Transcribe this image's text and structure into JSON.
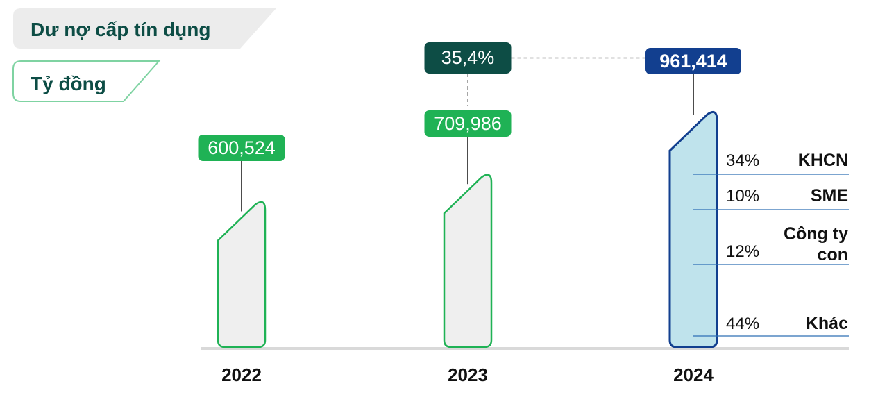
{
  "header": {
    "title": "Dư nợ cấp tín dụng",
    "unit": "Tỷ đồng"
  },
  "colors": {
    "accent_green": "#1fb255",
    "dark_teal": "#0d4d45",
    "navy": "#123f8f",
    "bar_fill": "#efefef",
    "bar_fill_current": "#bfe3ec",
    "segment_line": "#2e6fb5",
    "baseline": "#d9d9d9",
    "title_bg": "#ececec"
  },
  "chart_data": {
    "type": "bar",
    "title": "Dư nợ cấp tín dụng",
    "ylabel": "Tỷ đồng",
    "categories": [
      "2022",
      "2023",
      "2024"
    ],
    "values": [
      600524,
      709986,
      961414
    ],
    "value_labels": [
      "600,524",
      "709,986",
      "961,414"
    ],
    "ylim": [
      0,
      961414
    ],
    "growth_annotation": {
      "label": "35,4%",
      "from": "2023",
      "to": "2024"
    },
    "breakdown": {
      "category": "2024",
      "segments": [
        {
          "name": "KHCN",
          "percent": 34,
          "percent_label": "34%"
        },
        {
          "name": "SME",
          "percent": 10,
          "percent_label": "10%"
        },
        {
          "name": "Công ty con",
          "name_lines": [
            "Công ty",
            "con"
          ],
          "percent": 12,
          "percent_label": "12%"
        },
        {
          "name": "Khác",
          "percent": 44,
          "percent_label": "44%"
        }
      ]
    },
    "grid": false,
    "legend": "none"
  }
}
